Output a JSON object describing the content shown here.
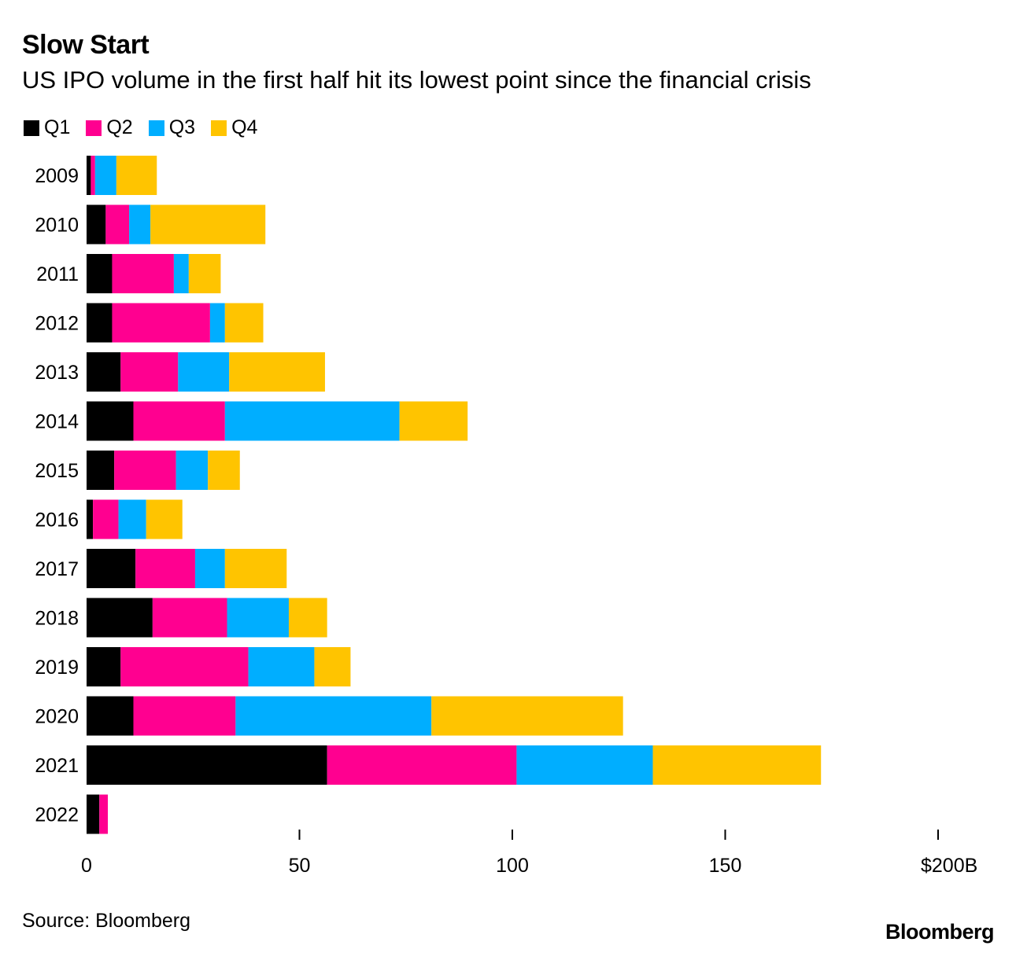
{
  "title": "Slow Start",
  "subtitle": "US IPO volume in the first half hit its lowest point since the financial crisis",
  "source": "Source: Bloomberg",
  "brand": "Bloomberg",
  "legend": [
    {
      "label": "Q1",
      "color": "#000000"
    },
    {
      "label": "Q2",
      "color": "#ff0090"
    },
    {
      "label": "Q3",
      "color": "#00aeff"
    },
    {
      "label": "Q4",
      "color": "#ffc400"
    }
  ],
  "chart_data": {
    "type": "bar",
    "orientation": "horizontal",
    "stacked": true,
    "categories": [
      "2009",
      "2010",
      "2011",
      "2012",
      "2013",
      "2014",
      "2015",
      "2016",
      "2017",
      "2018",
      "2019",
      "2020",
      "2021",
      "2022"
    ],
    "series": [
      {
        "name": "Q1",
        "color": "#000000",
        "values": [
          1,
          4.5,
          6,
          6,
          8,
          11,
          6.5,
          1.5,
          11.5,
          15.5,
          8,
          11,
          56.5,
          3
        ]
      },
      {
        "name": "Q2",
        "color": "#ff0090",
        "values": [
          1,
          5.5,
          14.5,
          23,
          13.5,
          21.5,
          14.5,
          6,
          14,
          17.5,
          30,
          24,
          44.5,
          2
        ]
      },
      {
        "name": "Q3",
        "color": "#00aeff",
        "values": [
          5,
          5,
          3.5,
          3.5,
          12,
          41,
          7.5,
          6.5,
          7,
          14.5,
          15.5,
          46,
          32,
          0
        ]
      },
      {
        "name": "Q4",
        "color": "#ffc400",
        "values": [
          9.5,
          27,
          7.5,
          9,
          22.5,
          16,
          7.5,
          8.5,
          14.5,
          9,
          8.5,
          45,
          39.5,
          0
        ]
      }
    ],
    "xlim": [
      0,
      200
    ],
    "xticks": [
      0,
      50,
      100,
      150,
      200
    ],
    "xtick_labels": [
      "0",
      "50",
      "100",
      "150",
      "$200B"
    ],
    "legend_position": "top-left",
    "grid": false
  }
}
